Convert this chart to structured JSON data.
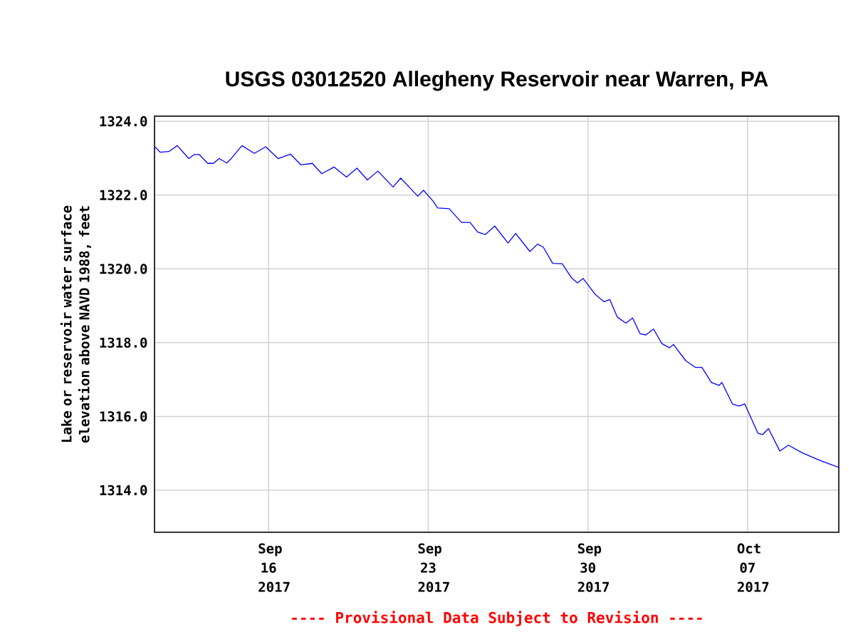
{
  "chart_data": {
    "type": "line",
    "title": "USGS 03012520 Allegheny Reservoir near Warren, PA",
    "ylabel": "Lake or reservoir water surface elevation above NAVD 1988, feet",
    "annotations": [
      "---- Provisional Data Subject to Revision ----"
    ],
    "xlim": [
      "2017-09-11T00:00",
      "2017-10-11T00:00"
    ],
    "xticks": [
      {
        "value": "2017-09-16",
        "label": "Sep 16 2017"
      },
      {
        "value": "2017-09-23",
        "label": "Sep 23 2017"
      },
      {
        "value": "2017-09-30",
        "label": "Sep 30 2017"
      },
      {
        "value": "2017-10-07",
        "label": "Oct 07 2017"
      }
    ],
    "ylim": [
      1312.86,
      1324.14
    ],
    "yticks": [
      {
        "value": 1314,
        "label": "1314.0"
      },
      {
        "value": 1316,
        "label": "1316.0"
      },
      {
        "value": 1318,
        "label": "1318.0"
      },
      {
        "value": 1320,
        "label": "1320.0"
      },
      {
        "value": 1322,
        "label": "1322.0"
      },
      {
        "value": 1324,
        "label": "1324.0"
      }
    ],
    "grid": true,
    "marker": "none",
    "line_style": "solid",
    "x": [
      "2017-09-11T00:00",
      "2017-09-11T06:00",
      "2017-09-11T15:00",
      "2017-09-12T00:00",
      "2017-09-12T12:00",
      "2017-09-12T18:00",
      "2017-09-12T23:00",
      "2017-09-13T08:00",
      "2017-09-13T14:00",
      "2017-09-13T20:00",
      "2017-09-14T04:00",
      "2017-09-14T08:00",
      "2017-09-14T20:00",
      "2017-09-15T09:00",
      "2017-09-15T21:00",
      "2017-09-16T10:00",
      "2017-09-16T23:00",
      "2017-09-17T10:00",
      "2017-09-17T22:00",
      "2017-09-18T08:00",
      "2017-09-18T21:00",
      "2017-09-19T10:00",
      "2017-09-19T21:00",
      "2017-09-20T08:00",
      "2017-09-20T19:00",
      "2017-09-21T11:00",
      "2017-09-21T19:00",
      "2017-09-22T13:00",
      "2017-09-22T19:00",
      "2017-09-23T05:00",
      "2017-09-23T10:00",
      "2017-09-23T22:00",
      "2017-09-24T11:00",
      "2017-09-24T20:00",
      "2017-09-25T04:00",
      "2017-09-25T12:00",
      "2017-09-25T22:00",
      "2017-09-26T12:00",
      "2017-09-26T20:00",
      "2017-09-27T11:00",
      "2017-09-27T19:00",
      "2017-09-28T01:00",
      "2017-09-28T11:00",
      "2017-09-28T21:00",
      "2017-09-29T07:00",
      "2017-09-29T13:00",
      "2017-09-29T19:00",
      "2017-09-30T08:00",
      "2017-09-30T17:00",
      "2017-09-30T23:00",
      "2017-10-01T07:00",
      "2017-10-01T16:00",
      "2017-10-01T23:00",
      "2017-10-02T07:00",
      "2017-10-02T13:00",
      "2017-10-02T21:00",
      "2017-10-03T06:00",
      "2017-10-03T14:00",
      "2017-10-03T18:00",
      "2017-10-04T07:00",
      "2017-10-04T17:00",
      "2017-10-05T00:00",
      "2017-10-05T10:00",
      "2017-10-05T18:00",
      "2017-10-05T21:00",
      "2017-10-06T08:00",
      "2017-10-06T15:00",
      "2017-10-06T21:00",
      "2017-10-07T11:00",
      "2017-10-07T16:00",
      "2017-10-07T22:00",
      "2017-10-08T10:00",
      "2017-10-08T19:00",
      "2017-10-09T09:00",
      "2017-10-10T00:00",
      "2017-10-10T10:00",
      "2017-10-11T00:00"
    ],
    "series": [
      {
        "color": "#0000ff",
        "values": [
          1323.32,
          1323.16,
          1323.18,
          1323.34,
          1322.99,
          1323.1,
          1323.1,
          1322.86,
          1322.86,
          1322.99,
          1322.87,
          1322.97,
          1323.34,
          1323.13,
          1323.31,
          1322.99,
          1323.11,
          1322.82,
          1322.86,
          1322.58,
          1322.76,
          1322.49,
          1322.73,
          1322.41,
          1322.65,
          1322.22,
          1322.46,
          1321.97,
          1322.13,
          1321.84,
          1321.65,
          1321.63,
          1321.26,
          1321.26,
          1321.0,
          1320.93,
          1321.16,
          1320.7,
          1320.96,
          1320.47,
          1320.67,
          1320.59,
          1320.15,
          1320.14,
          1319.75,
          1319.62,
          1319.74,
          1319.3,
          1319.11,
          1319.17,
          1318.69,
          1318.53,
          1318.67,
          1318.24,
          1318.21,
          1318.37,
          1317.97,
          1317.86,
          1317.95,
          1317.51,
          1317.33,
          1317.33,
          1316.92,
          1316.84,
          1316.92,
          1316.34,
          1316.28,
          1316.34,
          1315.54,
          1315.51,
          1315.67,
          1315.06,
          1315.22,
          1315.02,
          1314.85,
          1314.75,
          1314.62
        ]
      }
    ]
  }
}
